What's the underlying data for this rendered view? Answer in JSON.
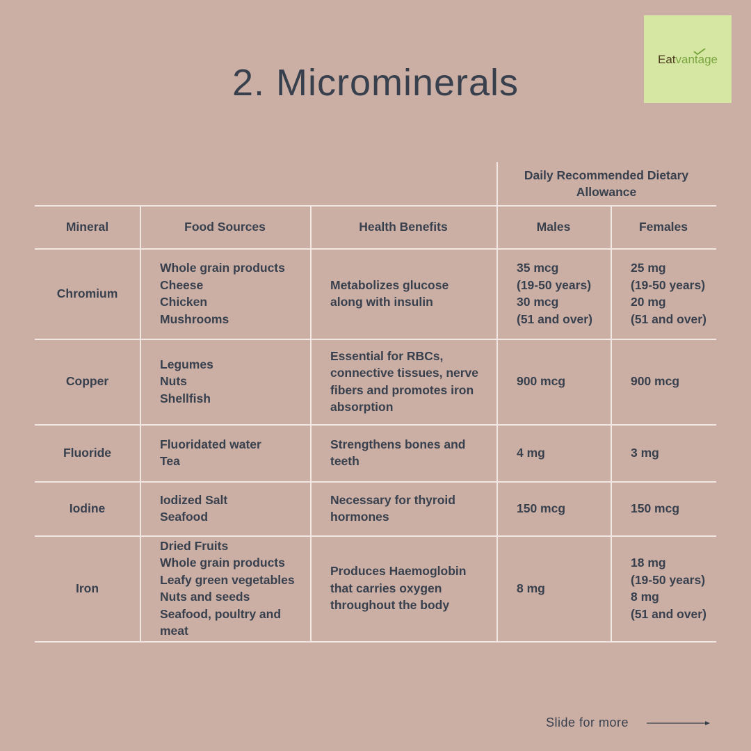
{
  "header": {
    "title": "2. Microminerals",
    "logo": [
      "Eat",
      "vantage"
    ]
  },
  "table": {
    "group_header": "Daily Recommended Dietary Allowance",
    "columns": [
      "Mineral",
      "Food Sources",
      "Health Benefits",
      "Males",
      "Females"
    ],
    "rows": [
      [
        [
          "Chromium"
        ],
        [
          "Whole grain products",
          "Cheese",
          "Chicken",
          "Mushrooms"
        ],
        [
          "Metabolizes glucose",
          "along with insulin"
        ],
        [
          "35 mcg",
          "(19-50 years)",
          "30 mcg",
          "(51 and over)"
        ],
        [
          "25 mg",
          "(19-50 years)",
          "20 mg",
          "(51 and over)"
        ]
      ],
      [
        [
          "Copper"
        ],
        [
          "Legumes",
          "Nuts",
          "Shellfish"
        ],
        [
          "Essential for RBCs,",
          "connective tissues, nerve",
          "fibers and promotes iron",
          "absorption"
        ],
        [
          "900 mcg"
        ],
        [
          "900 mcg"
        ]
      ],
      [
        [
          "Fluoride"
        ],
        [
          "Fluoridated water",
          "Tea"
        ],
        [
          "Strengthens bones and",
          "teeth"
        ],
        [
          "4 mg"
        ],
        [
          "3 mg"
        ]
      ],
      [
        [
          "Iodine"
        ],
        [
          "Iodized Salt",
          "Seafood"
        ],
        [
          "Necessary for thyroid",
          "hormones"
        ],
        [
          "150 mcg"
        ],
        [
          "150 mcg"
        ]
      ],
      [
        [
          "Iron"
        ],
        [
          "Dried Fruits",
          "Whole grain products",
          "Leafy green vegetables",
          "Nuts and seeds",
          "Seafood, poultry and",
          "meat"
        ],
        [
          "Produces Haemoglobin",
          "that carries oxygen",
          "throughout the body"
        ],
        [
          "8 mg"
        ],
        [
          "18 mg",
          "(19-50 years)",
          "8 mg",
          "(51 and over)"
        ]
      ]
    ]
  },
  "footer": {
    "text": "Slide for more"
  }
}
